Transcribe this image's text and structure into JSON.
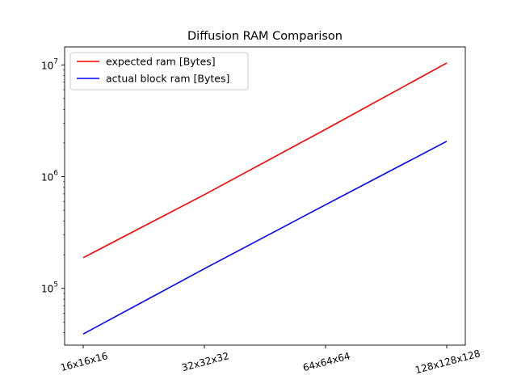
{
  "chart_data": {
    "type": "line",
    "title": "Diffusion RAM Comparison",
    "xlabel": "",
    "ylabel": "",
    "yscale": "log",
    "ylim": [
      31000,
      14500000
    ],
    "grid": false,
    "legend_position": "upper-left",
    "categories": [
      "16x16x16",
      "32x32x32",
      "64x64x64",
      "128x128x128"
    ],
    "y_ticks": [
      {
        "value": 100000,
        "base": "10",
        "exp": "5"
      },
      {
        "value": 1000000,
        "base": "10",
        "exp": "6"
      },
      {
        "value": 10000000,
        "base": "10",
        "exp": "7"
      }
    ],
    "series": [
      {
        "name": "expected ram [Bytes]",
        "color": "#ff0000",
        "values": [
          188000,
          690000,
          2650000,
          10400000
        ]
      },
      {
        "name": "actual block ram [Bytes]",
        "color": "#0000ff",
        "values": [
          39000,
          150000,
          560000,
          2070000
        ]
      }
    ]
  }
}
